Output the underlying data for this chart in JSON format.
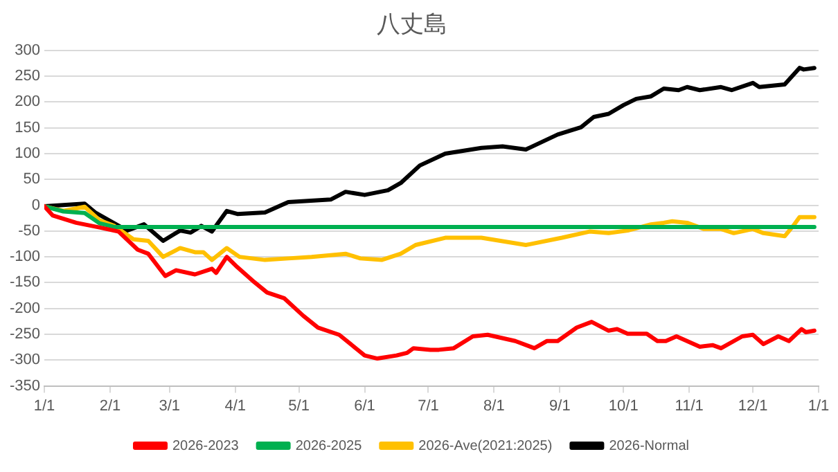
{
  "chart_data": {
    "type": "line",
    "title": "八丈島",
    "legend": "bottom",
    "grid": "y",
    "marker": "none",
    "line_style": "solid",
    "xlim": [
      "2026-01-01",
      "2027-01-01"
    ],
    "xticks": [
      {
        "value": "2026-01-01",
        "label": "1/1"
      },
      {
        "value": "2026-02-01",
        "label": "2/1"
      },
      {
        "value": "2026-03-01",
        "label": "3/1"
      },
      {
        "value": "2026-04-01",
        "label": "4/1"
      },
      {
        "value": "2026-05-01",
        "label": "5/1"
      },
      {
        "value": "2026-06-01",
        "label": "6/1"
      },
      {
        "value": "2026-07-01",
        "label": "7/1"
      },
      {
        "value": "2026-08-01",
        "label": "8/1"
      },
      {
        "value": "2026-09-01",
        "label": "9/1"
      },
      {
        "value": "2026-10-01",
        "label": "10/1"
      },
      {
        "value": "2026-11-01",
        "label": "11/1"
      },
      {
        "value": "2026-12-01",
        "label": "12/1"
      },
      {
        "value": "2027-01-01",
        "label": "1/1"
      }
    ],
    "ylim": [
      -350,
      300
    ],
    "yticks": [
      -350,
      -300,
      -250,
      -200,
      -150,
      -100,
      -50,
      0,
      50,
      100,
      150,
      200,
      250,
      300
    ],
    "series": [
      {
        "name": "2026-2023",
        "color": "#ff0000",
        "x": [
          "2026-01-01",
          "2026-01-05",
          "2026-01-16",
          "2026-01-27",
          "2026-02-05",
          "2026-02-14",
          "2026-02-19",
          "2026-02-27",
          "2026-03-04",
          "2026-03-13",
          "2026-03-21",
          "2026-03-23",
          "2026-03-28",
          "2026-04-02",
          "2026-04-10",
          "2026-04-16",
          "2026-04-24",
          "2026-05-03",
          "2026-05-10",
          "2026-05-20",
          "2026-06-01",
          "2026-06-07",
          "2026-06-16",
          "2026-06-21",
          "2026-06-24",
          "2026-07-02",
          "2026-07-06",
          "2026-07-13",
          "2026-07-22",
          "2026-07-29",
          "2026-08-11",
          "2026-08-20",
          "2026-08-26",
          "2026-08-31",
          "2026-09-09",
          "2026-09-16",
          "2026-09-24",
          "2026-09-28",
          "2026-10-03",
          "2026-10-12",
          "2026-10-17",
          "2026-10-21",
          "2026-10-26",
          "2026-11-06",
          "2026-11-12",
          "2026-11-16",
          "2026-11-26",
          "2026-12-01",
          "2026-12-06",
          "2026-12-13",
          "2026-12-18",
          "2026-12-24",
          "2026-12-26",
          "2026-12-30"
        ],
        "values": [
          -2,
          -20,
          -34,
          -43,
          -51,
          -86,
          -94,
          -137,
          -126,
          -134,
          -123,
          -131,
          -100,
          -120,
          -149,
          -169,
          -180,
          -214,
          -237,
          -251,
          -291,
          -297,
          -291,
          -286,
          -277,
          -280,
          -280,
          -277,
          -254,
          -251,
          -263,
          -277,
          -263,
          -263,
          -237,
          -226,
          -243,
          -240,
          -249,
          -249,
          -263,
          -263,
          -254,
          -274,
          -271,
          -277,
          -254,
          -251,
          -269,
          -254,
          -263,
          -240,
          -246,
          -243
        ]
      },
      {
        "name": "2026-2025",
        "color": "#00b050",
        "x": [
          "2026-01-01",
          "2026-01-10",
          "2026-01-20",
          "2026-01-27",
          "2026-02-03",
          "2026-12-30"
        ],
        "values": [
          -2,
          -12,
          -15,
          -35,
          -42,
          -42
        ]
      },
      {
        "name": "2026-Ave(2021:2025)",
        "color": "#ffc000",
        "x": [
          "2026-01-01",
          "2026-01-10",
          "2026-01-20",
          "2026-01-27",
          "2026-02-03",
          "2026-02-12",
          "2026-02-19",
          "2026-02-26",
          "2026-03-06",
          "2026-03-13",
          "2026-03-17",
          "2026-03-21",
          "2026-03-28",
          "2026-04-03",
          "2026-04-15",
          "2026-04-26",
          "2026-05-07",
          "2026-05-23",
          "2026-05-30",
          "2026-06-09",
          "2026-06-18",
          "2026-06-25",
          "2026-07-09",
          "2026-07-26",
          "2026-08-04",
          "2026-08-16",
          "2026-09-02",
          "2026-09-15",
          "2026-09-24",
          "2026-10-03",
          "2026-10-14",
          "2026-10-20",
          "2026-10-24",
          "2026-10-31",
          "2026-11-08",
          "2026-11-16",
          "2026-11-22",
          "2026-12-01",
          "2026-12-06",
          "2026-12-16",
          "2026-12-20",
          "2026-12-23",
          "2026-12-30"
        ],
        "values": [
          -2,
          -11,
          -3,
          -29,
          -40,
          -66,
          -69,
          -100,
          -83,
          -91,
          -91,
          -106,
          -83,
          -100,
          -106,
          -103,
          -100,
          -94,
          -103,
          -106,
          -94,
          -77,
          -63,
          -63,
          -69,
          -77,
          -63,
          -51,
          -54,
          -49,
          -37,
          -34,
          -31,
          -34,
          -46,
          -46,
          -54,
          -46,
          -54,
          -60,
          -40,
          -23,
          -23
        ]
      },
      {
        "name": "2026-Normal",
        "color": "#000000",
        "x": [
          "2026-01-01",
          "2026-01-20",
          "2026-01-25",
          "2026-02-09",
          "2026-02-17",
          "2026-02-26",
          "2026-03-06",
          "2026-03-11",
          "2026-03-16",
          "2026-03-21",
          "2026-03-28",
          "2026-04-02",
          "2026-04-15",
          "2026-04-26",
          "2026-05-16",
          "2026-05-23",
          "2026-06-01",
          "2026-06-12",
          "2026-06-18",
          "2026-06-27",
          "2026-07-09",
          "2026-07-26",
          "2026-08-05",
          "2026-08-16",
          "2026-08-31",
          "2026-09-11",
          "2026-09-17",
          "2026-09-24",
          "2026-10-01",
          "2026-10-07",
          "2026-10-14",
          "2026-10-20",
          "2026-10-27",
          "2026-10-31",
          "2026-11-06",
          "2026-11-16",
          "2026-11-21",
          "2026-12-01",
          "2026-12-04",
          "2026-12-16",
          "2026-12-23",
          "2026-12-25",
          "2026-12-30"
        ],
        "values": [
          -2,
          3,
          -14,
          -49,
          -37,
          -69,
          -49,
          -53,
          -40,
          -51,
          -11,
          -17,
          -14,
          6,
          11,
          26,
          20,
          29,
          43,
          77,
          100,
          111,
          114,
          108,
          137,
          151,
          171,
          177,
          194,
          206,
          211,
          226,
          223,
          229,
          223,
          229,
          223,
          237,
          229,
          234,
          266,
          263,
          266
        ]
      }
    ]
  }
}
